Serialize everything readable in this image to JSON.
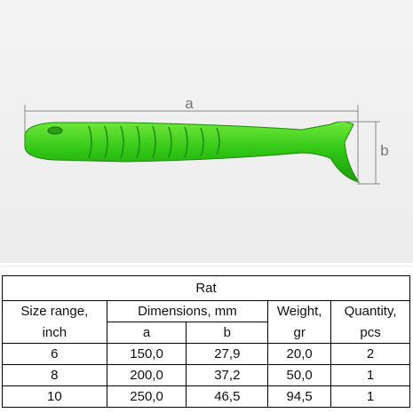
{
  "image": {
    "dimension_a": "a",
    "dimension_b": "b"
  },
  "table": {
    "title": "Rat",
    "header": [
      [
        "Size range,",
        "Dimensions, mm",
        "Weight,",
        "Quantity,"
      ],
      [
        "inch",
        "a",
        "b",
        "gr",
        "pcs"
      ]
    ],
    "rows": [
      [
        "6",
        "150,0",
        "27,9",
        "20,0",
        "2"
      ],
      [
        "8",
        "200,0",
        "37,2",
        "50,0",
        "1"
      ],
      [
        "10",
        "250,0",
        "46,5",
        "94,5",
        "1"
      ]
    ]
  }
}
